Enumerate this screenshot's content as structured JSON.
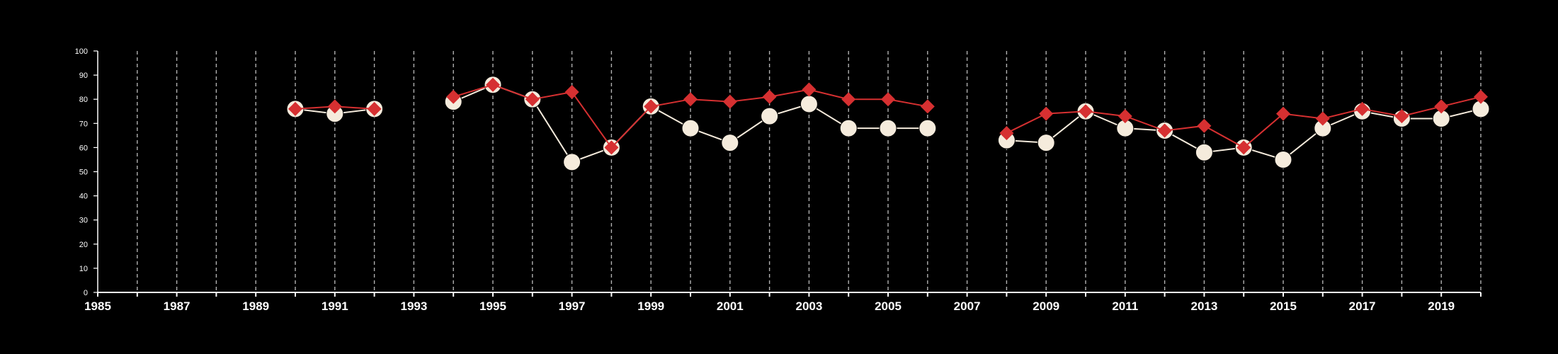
{
  "chart_data": {
    "type": "line",
    "title": "",
    "xlabel": "",
    "ylabel": "",
    "xlim": [
      1985,
      2020
    ],
    "ylim": [
      0,
      100
    ],
    "x_tick_labels": [
      "1985",
      "1987",
      "1989",
      "1991",
      "1993",
      "1995",
      "1997",
      "1999",
      "2001",
      "2003",
      "2005",
      "2007",
      "2009",
      "2011",
      "2013",
      "2015",
      "2017",
      "2019"
    ],
    "y_tick_labels": [
      "0",
      "10",
      "20",
      "30",
      "40",
      "50",
      "60",
      "70",
      "80",
      "90",
      "100"
    ],
    "vertical_grid": "dashed at every year",
    "horizontal_grid": false,
    "legend": "none",
    "x": [
      1990,
      1991,
      1992,
      1993,
      1994,
      1995,
      1996,
      1997,
      1998,
      1999,
      2000,
      2001,
      2002,
      2003,
      2004,
      2005,
      2006,
      2007,
      2008,
      2009,
      2010,
      2011,
      2012,
      2013,
      2014,
      2015,
      2016,
      2017,
      2018,
      2019,
      2020
    ],
    "series": [
      {
        "marker": "diamond",
        "color": "#d63031",
        "values": [
          76,
          77,
          76,
          null,
          81,
          86,
          80,
          83,
          60,
          77,
          80,
          79,
          81,
          84,
          80,
          80,
          77,
          null,
          66,
          74,
          75,
          73,
          67,
          69,
          60,
          74,
          72,
          76,
          73,
          77,
          81
        ]
      },
      {
        "marker": "circle",
        "color": "#f5ebdc",
        "values": [
          76,
          74,
          76,
          null,
          79,
          86,
          80,
          54,
          60,
          77,
          68,
          62,
          73,
          78,
          68,
          68,
          68,
          null,
          63,
          62,
          75,
          68,
          67,
          58,
          60,
          55,
          68,
          75,
          72,
          72,
          76
        ]
      }
    ]
  }
}
